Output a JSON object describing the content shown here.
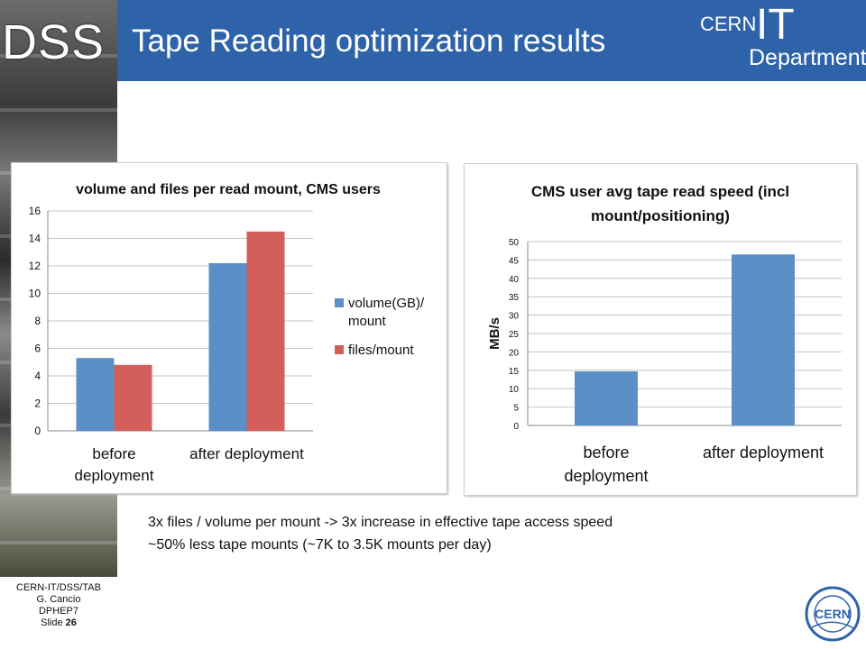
{
  "header": {
    "badge": "DSS",
    "title": "Tape Reading optimization results",
    "brand_top": "CERN",
    "brand_it": "IT",
    "brand_dept": "Department"
  },
  "colors": {
    "header_bg": "#2f63a9",
    "series_blue": "#5b8fc8",
    "series_red": "#d35f5a"
  },
  "chart_data": [
    {
      "type": "bar",
      "title": "volume and files per read mount, CMS users",
      "categories": [
        "before deployment",
        "after deployment"
      ],
      "category_lines": [
        [
          "before",
          "deployment"
        ],
        [
          "after deployment"
        ]
      ],
      "series": [
        {
          "name": "volume(GB)/ mount",
          "name_lines": [
            "volume(GB)/",
            "mount"
          ],
          "values": [
            5.3,
            12.2
          ]
        },
        {
          "name": "files/mount",
          "name_lines": [
            "files/mount"
          ],
          "values": [
            4.8,
            14.5
          ]
        }
      ],
      "ylim": [
        0,
        16
      ],
      "yticks": [
        0,
        2,
        4,
        6,
        8,
        10,
        12,
        14,
        16
      ],
      "grid": true,
      "legend": "right"
    },
    {
      "type": "bar",
      "title": "CMS user avg tape read speed (incl mount/positioning)",
      "title_lines": [
        "CMS user avg tape read speed (incl",
        "mount/positioning)"
      ],
      "categories": [
        "before deployment",
        "after deployment"
      ],
      "category_lines": [
        [
          "before",
          "deployment"
        ],
        [
          "after deployment"
        ]
      ],
      "values": [
        14.7,
        46.5
      ],
      "ylabel": "MB/s",
      "ylim": [
        0,
        50
      ],
      "yticks": [
        0,
        5,
        10,
        15,
        20,
        25,
        30,
        35,
        40,
        45,
        50
      ],
      "grid": true
    }
  ],
  "notes": [
    "3x files / volume per mount -> 3x increase in effective tape access speed",
    "~50% less tape mounts (~7K to 3.5K mounts per day)"
  ],
  "footer": {
    "line1": "CERN-IT/DSS/TAB",
    "line2": "G. Cancio",
    "line3": "DPHEP7",
    "slide_label": "Slide",
    "slide_number": "26"
  },
  "logo_text": "CERN"
}
